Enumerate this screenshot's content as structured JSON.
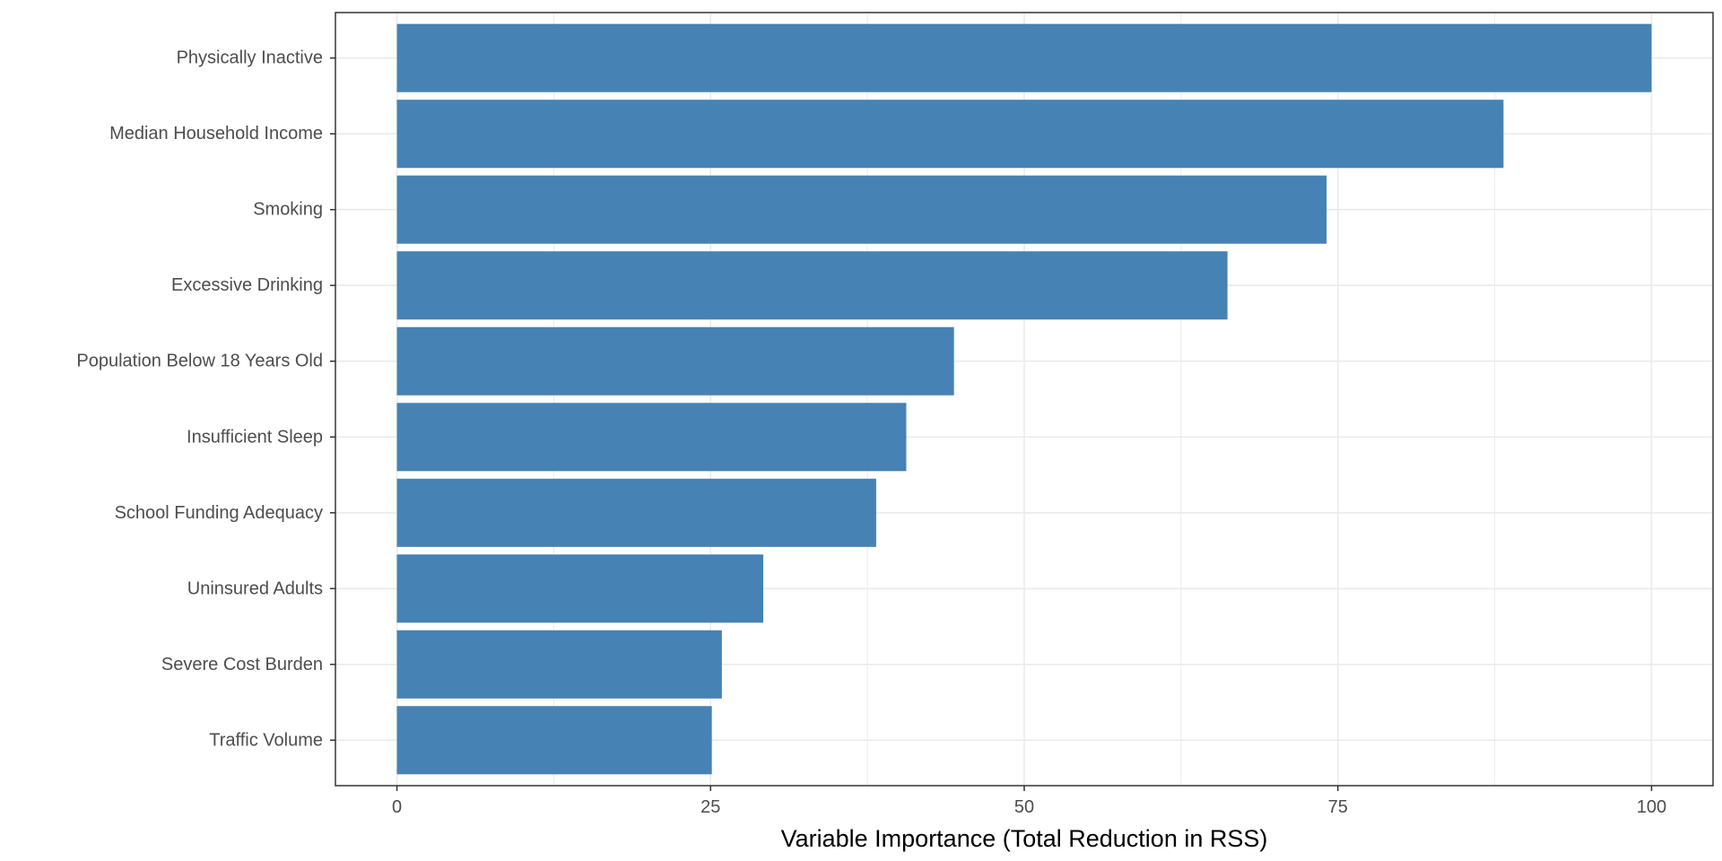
{
  "chart_data": {
    "type": "bar",
    "orientation": "horizontal",
    "categories": [
      "Physically Inactive",
      "Median Household Income",
      "Smoking",
      "Excessive Drinking",
      "Population Below 18 Years Old",
      "Insufficient Sleep",
      "School Funding Adequacy",
      "Uninsured Adults",
      "Severe Cost Burden",
      "Traffic Volume"
    ],
    "values": [
      100,
      88.2,
      74.1,
      66.2,
      44.4,
      40.6,
      38.2,
      29.2,
      25.9,
      25.1
    ],
    "title": "",
    "xlabel": "Variable Importance (Total Reduction in RSS)",
    "ylabel": "",
    "xlim": [
      -4.9,
      104.9
    ],
    "xticks": [
      0,
      25,
      50,
      75,
      100
    ],
    "x_minor_gridlines": [
      12.5,
      37.5,
      62.5,
      87.5
    ],
    "grid": true,
    "legend": "none",
    "colors": {
      "bar": "#4682b4",
      "grid": "#ebebeb",
      "panel_border": "#333333",
      "tick_text": "#4d4d4d",
      "axis_title": "#000000"
    }
  }
}
